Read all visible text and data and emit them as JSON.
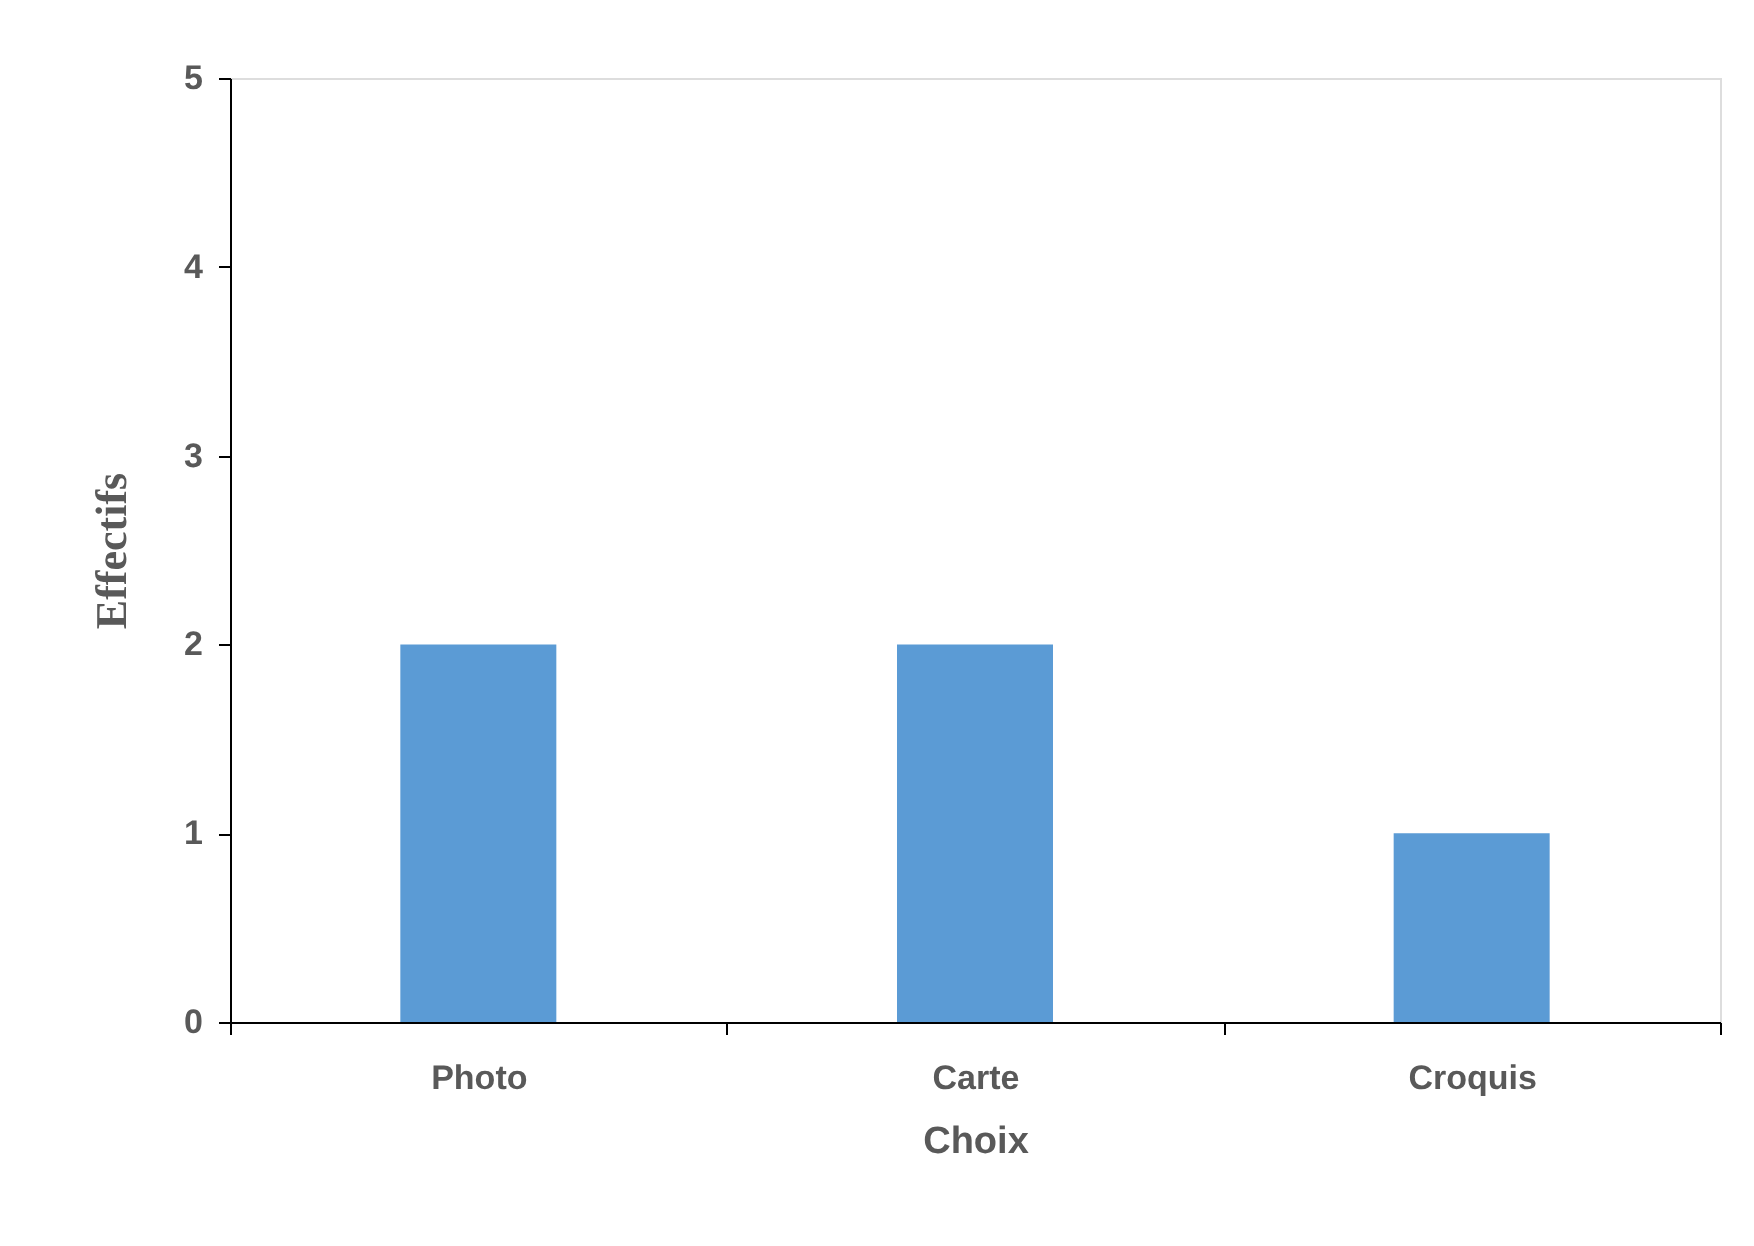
{
  "chart_data": {
    "type": "bar",
    "xlabel": "Choix",
    "ylabel": "Effectifs",
    "categories": [
      "Photo",
      "Carte",
      "Croquis"
    ],
    "values": [
      2,
      2,
      1
    ],
    "color": "#5b9bd5",
    "ylim": [
      0,
      5
    ],
    "yticks": [
      0,
      1,
      2,
      3,
      4,
      5
    ],
    "grid": false
  }
}
